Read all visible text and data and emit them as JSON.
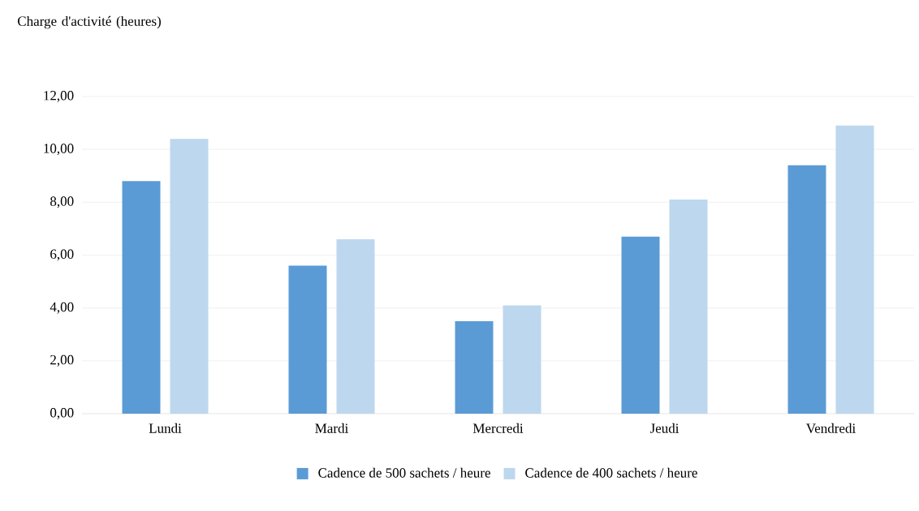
{
  "chart_data": {
    "type": "bar",
    "ylabel": "Charge d'activité (heures)",
    "categories": [
      "Lundi",
      "Mardi",
      "Mercredi",
      "Jeudi",
      "Vendredi"
    ],
    "series": [
      {
        "name": "Cadence de 500 sachets / heure",
        "color": "#5b9bd5",
        "values": [
          8.8,
          5.6,
          3.5,
          6.7,
          9.4
        ]
      },
      {
        "name": "Cadence de 400 sachets / heure",
        "color": "#bdd7ee",
        "values": [
          10.4,
          6.6,
          4.1,
          8.1,
          10.9
        ]
      }
    ],
    "ylim": [
      0,
      12
    ],
    "yticks": [
      {
        "value": 0,
        "label": "0,00"
      },
      {
        "value": 2,
        "label": "2,00"
      },
      {
        "value": 4,
        "label": "4,00"
      },
      {
        "value": 6,
        "label": "6,00"
      },
      {
        "value": 8,
        "label": "8,00"
      },
      {
        "value": 10,
        "label": "10,00"
      },
      {
        "value": 12,
        "label": "12,00"
      }
    ],
    "grid": "y",
    "legend": "bottom"
  }
}
